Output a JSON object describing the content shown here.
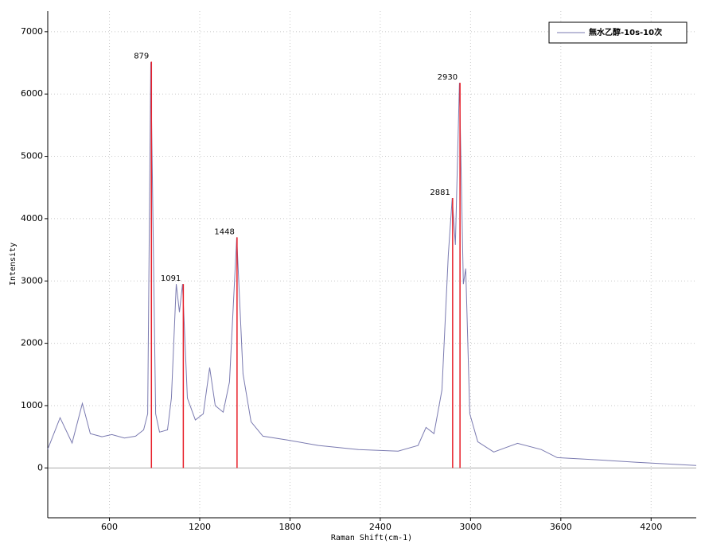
{
  "chart_data": {
    "type": "line",
    "x_label": "Raman Shift(cm-1)",
    "y_label": "Intensity",
    "xlim": [
      190,
      4500
    ],
    "ylim": [
      -800,
      7330
    ],
    "xticks": [
      600,
      1200,
      1800,
      2400,
      3000,
      3600,
      4200
    ],
    "yticks": [
      0,
      1000,
      2000,
      3000,
      4000,
      5000,
      6000,
      7000
    ],
    "grid": true,
    "legend": "upper right",
    "series": [
      {
        "name": "無水乙醇-10s-10次",
        "color": "#7a7ab0",
        "x": [
          190,
          272,
          352,
          420,
          473,
          550,
          616,
          700,
          774,
          827,
          854,
          875,
          907,
          933,
          986,
          1012,
          1044,
          1065,
          1086,
          1118,
          1171,
          1224,
          1266,
          1303,
          1356,
          1398,
          1446,
          1488,
          1541,
          1620,
          1779,
          1990,
          2255,
          2519,
          2651,
          2704,
          2757,
          2810,
          2852,
          2878,
          2899,
          2926,
          2952,
          2968,
          2995,
          3048,
          3154,
          3312,
          3470,
          3576,
          3840,
          4105,
          4500
        ],
        "values": [
          300,
          805,
          400,
          1035,
          550,
          500,
          535,
          480,
          510,
          610,
          870,
          6510,
          870,
          575,
          610,
          1120,
          2950,
          2500,
          2950,
          1120,
          770,
          870,
          1610,
          1000,
          895,
          1380,
          3700,
          1510,
          740,
          510,
          450,
          360,
          295,
          270,
          360,
          650,
          550,
          1250,
          3420,
          4330,
          3580,
          6180,
          2950,
          3200,
          870,
          420,
          255,
          395,
          295,
          165,
          130,
          90,
          40
        ]
      }
    ],
    "peaks": {
      "color": "#e8202a",
      "x": [
        879,
        1091,
        1448,
        2881,
        2930
      ],
      "values": [
        6520,
        2950,
        3700,
        4330,
        6180
      ]
    }
  }
}
